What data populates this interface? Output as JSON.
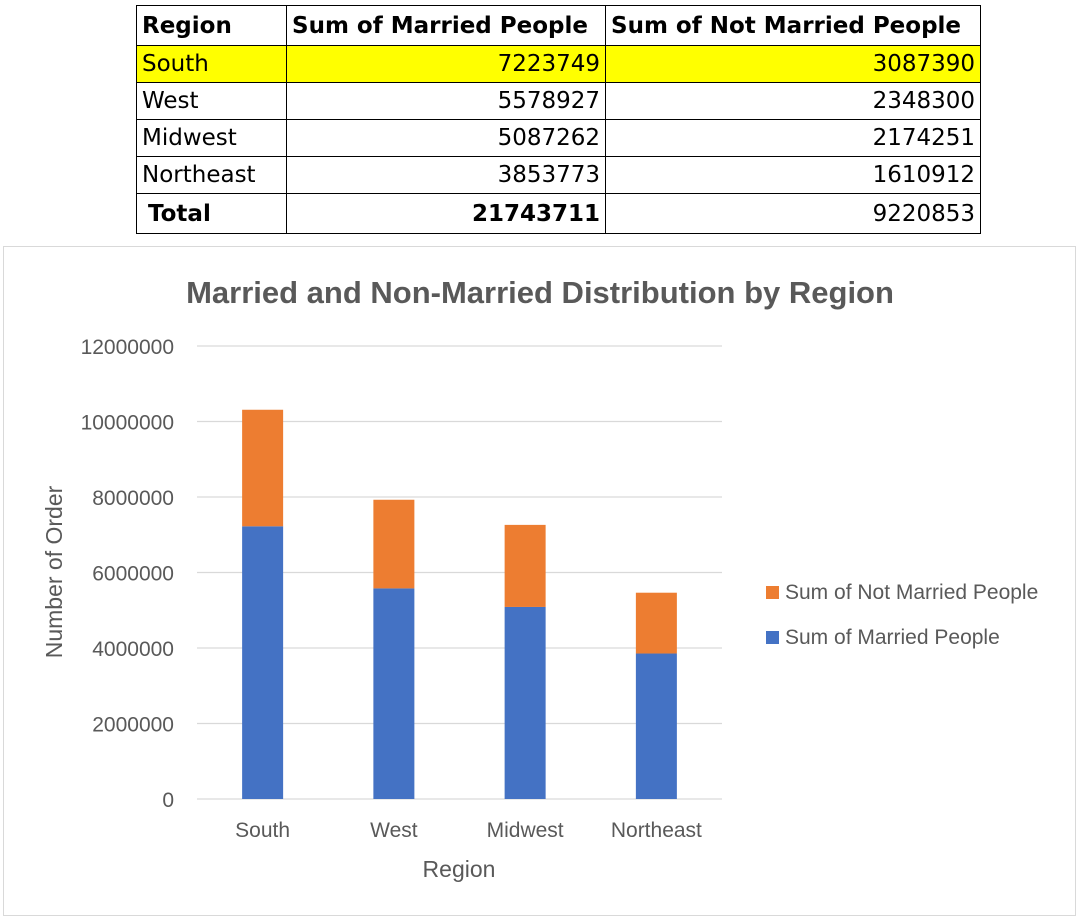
{
  "table": {
    "headers": [
      "Region",
      "Sum of Married People",
      "Sum of Not Married People"
    ],
    "rows": [
      {
        "region": "South",
        "married": "7223749",
        "not_married": "3087390"
      },
      {
        "region": "West",
        "married": "5578927",
        "not_married": "2348300"
      },
      {
        "region": "Midwest",
        "married": "5087262",
        "not_married": "2174251"
      },
      {
        "region": "Northeast",
        "married": "3853773",
        "not_married": "1610912"
      }
    ],
    "total": {
      "label": "Total",
      "married": "21743711",
      "not_married": "9220853"
    }
  },
  "chart_data": {
    "type": "bar",
    "stacked": true,
    "title": "Married and Non-Married Distribution by Region",
    "xlabel": "Region",
    "ylabel": "Number of Order",
    "categories": [
      "South",
      "West",
      "Midwest",
      "Northeast"
    ],
    "series": [
      {
        "name": "Sum of Married People",
        "values": [
          7223749,
          5578927,
          5087262,
          3853773
        ],
        "color": "#4472c4"
      },
      {
        "name": "Sum of Not Married People",
        "values": [
          3087390,
          2348300,
          2174251,
          1610912
        ],
        "color": "#ed7d31"
      }
    ],
    "ylim": [
      0,
      12000000
    ],
    "yticks": [
      "0",
      "2000000",
      "4000000",
      "6000000",
      "8000000",
      "10000000",
      "12000000"
    ],
    "grid": true,
    "legend": "right"
  },
  "colors": {
    "highlight": "#ffff00",
    "gridline": "#d9d9d9",
    "axis_text": "#595959"
  }
}
